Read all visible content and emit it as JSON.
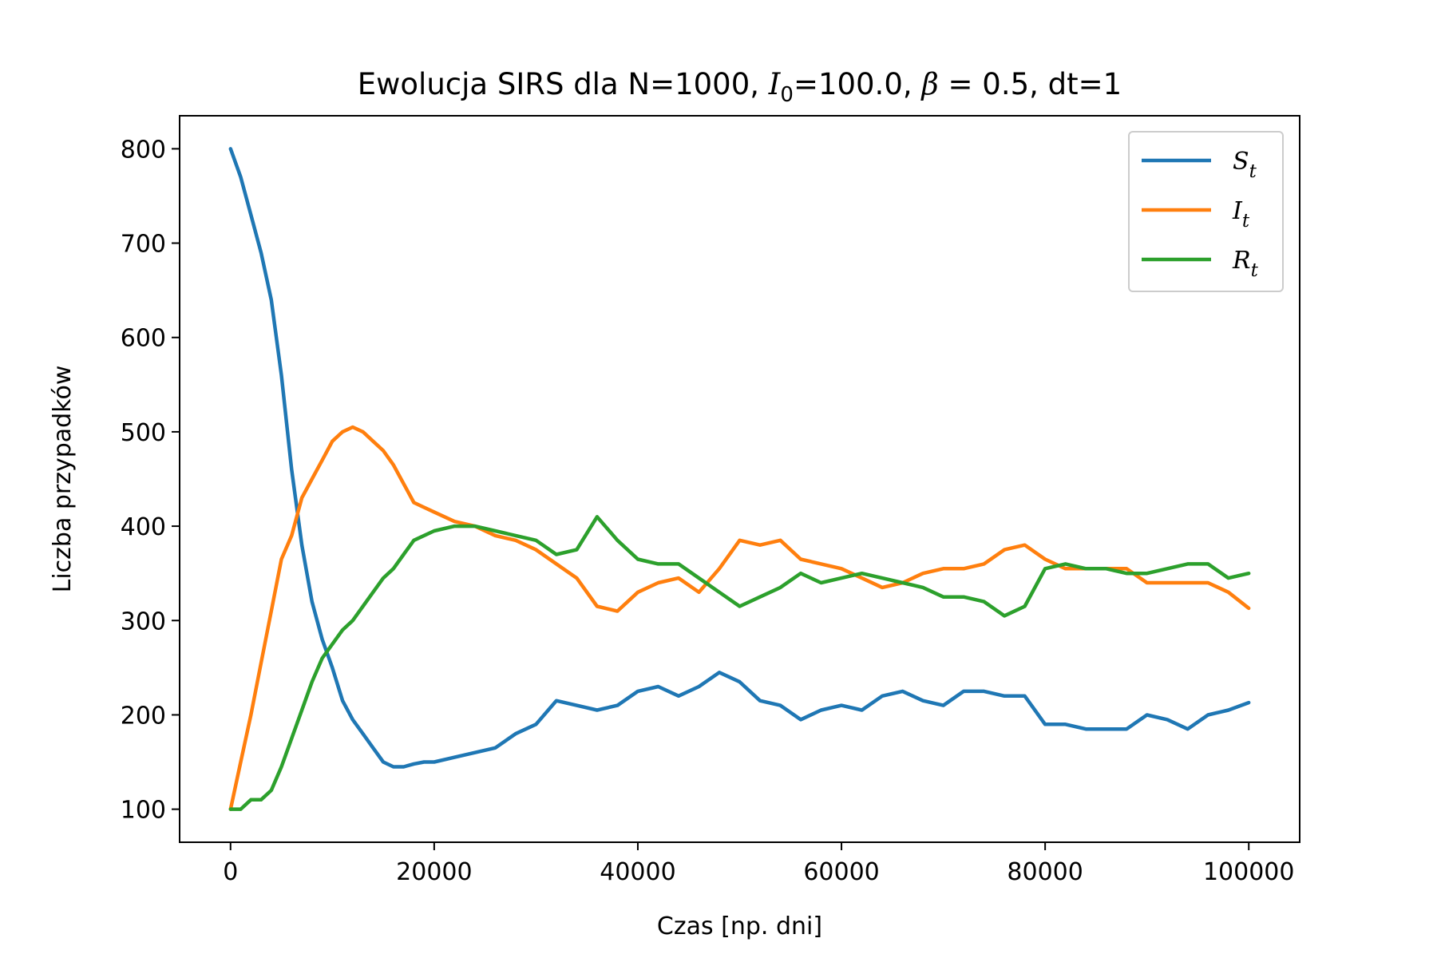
{
  "chart_data": {
    "type": "line",
    "title": "Ewolucja SIRS dla N=1000, I₀=100.0, β = 0.5, dt=1",
    "xlabel": "Czas [np. dni]",
    "ylabel": "Liczba przypadków",
    "xlim": [
      -5000,
      105000
    ],
    "ylim": [
      65,
      835
    ],
    "xticks": [
      0,
      20000,
      40000,
      60000,
      80000,
      100000
    ],
    "yticks": [
      100,
      200,
      300,
      400,
      500,
      600,
      700,
      800
    ],
    "grid": false,
    "legend_position": "top-right",
    "x": [
      0,
      1000,
      2000,
      3000,
      4000,
      5000,
      6000,
      7000,
      8000,
      9000,
      10000,
      11000,
      12000,
      13000,
      14000,
      15000,
      16000,
      17000,
      18000,
      19000,
      20000,
      22000,
      24000,
      26000,
      28000,
      30000,
      32000,
      34000,
      36000,
      38000,
      40000,
      42000,
      44000,
      46000,
      48000,
      50000,
      52000,
      54000,
      56000,
      58000,
      60000,
      62000,
      64000,
      66000,
      68000,
      70000,
      72000,
      74000,
      76000,
      78000,
      80000,
      82000,
      84000,
      86000,
      88000,
      90000,
      92000,
      94000,
      96000,
      98000,
      100000
    ],
    "series": [
      {
        "name": "S_t",
        "label_main": "S",
        "label_sub": "t",
        "color": "#1f77b4",
        "values": [
          800,
          770,
          730,
          690,
          640,
          560,
          460,
          380,
          320,
          280,
          250,
          215,
          195,
          180,
          165,
          150,
          145,
          145,
          148,
          150,
          150,
          155,
          160,
          165,
          180,
          190,
          215,
          210,
          205,
          210,
          225,
          230,
          220,
          230,
          245,
          235,
          215,
          210,
          195,
          205,
          210,
          205,
          220,
          225,
          215,
          210,
          225,
          225,
          220,
          220,
          190,
          190,
          185,
          185,
          185,
          200,
          195,
          185,
          200,
          205,
          213
        ]
      },
      {
        "name": "I_t",
        "label_main": "I",
        "label_sub": "t",
        "color": "#ff7f0e",
        "values": [
          100,
          150,
          200,
          255,
          310,
          365,
          390,
          430,
          450,
          470,
          490,
          500,
          505,
          500,
          490,
          480,
          465,
          445,
          425,
          420,
          415,
          405,
          400,
          390,
          385,
          375,
          360,
          345,
          315,
          310,
          330,
          340,
          345,
          330,
          355,
          385,
          380,
          385,
          365,
          360,
          355,
          345,
          335,
          340,
          350,
          355,
          355,
          360,
          375,
          380,
          365,
          355,
          355,
          355,
          355,
          340,
          340,
          340,
          340,
          330,
          313
        ]
      },
      {
        "name": "R_t",
        "label_main": "R",
        "label_sub": "t",
        "color": "#2ca02c",
        "values": [
          100,
          100,
          110,
          110,
          120,
          145,
          175,
          205,
          235,
          260,
          275,
          290,
          300,
          315,
          330,
          345,
          355,
          370,
          385,
          390,
          395,
          400,
          400,
          395,
          390,
          385,
          370,
          375,
          410,
          385,
          365,
          360,
          360,
          345,
          330,
          315,
          325,
          335,
          350,
          340,
          345,
          350,
          345,
          340,
          335,
          325,
          325,
          320,
          305,
          315,
          355,
          360,
          355,
          355,
          350,
          350,
          355,
          360,
          360,
          345,
          350
        ]
      }
    ]
  }
}
